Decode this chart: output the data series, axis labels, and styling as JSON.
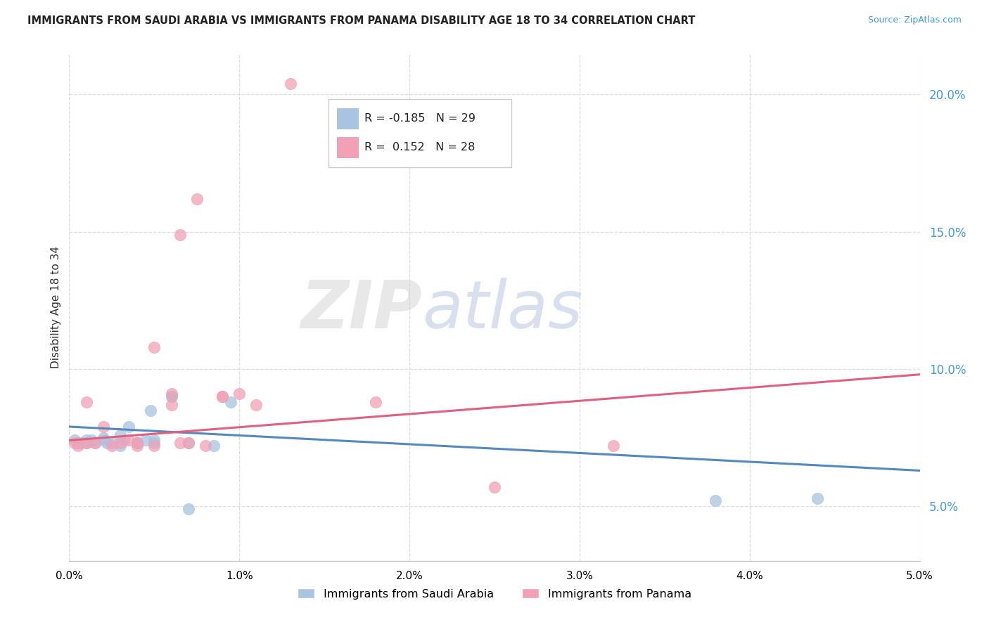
{
  "title": "IMMIGRANTS FROM SAUDI ARABIA VS IMMIGRANTS FROM PANAMA DISABILITY AGE 18 TO 34 CORRELATION CHART",
  "source": "Source: ZipAtlas.com",
  "ylabel": "Disability Age 18 to 34",
  "legend_label_blue": "Immigrants from Saudi Arabia",
  "legend_label_pink": "Immigrants from Panama",
  "legend_r_blue": "R = -0.185",
  "legend_n_blue": "N = 29",
  "legend_r_pink": "R =  0.152",
  "legend_n_pink": "N = 28",
  "xlim": [
    0.0,
    0.05
  ],
  "ylim": [
    0.03,
    0.215
  ],
  "xticks": [
    0.0,
    0.01,
    0.02,
    0.03,
    0.04,
    0.05
  ],
  "yticks_right": [
    0.05,
    0.1,
    0.15,
    0.2
  ],
  "color_blue": "#a8c4e0",
  "color_pink": "#f2a0b5",
  "color_blue_line": "#5588bb",
  "color_pink_line": "#e06080",
  "watermark_zip": "ZIP",
  "watermark_atlas": "atlas",
  "blue_x": [
    0.0003,
    0.0005,
    0.0007,
    0.001,
    0.001,
    0.0013,
    0.0015,
    0.002,
    0.002,
    0.0022,
    0.0025,
    0.003,
    0.003,
    0.0032,
    0.0035,
    0.004,
    0.004,
    0.0045,
    0.0048,
    0.005,
    0.005,
    0.006,
    0.006,
    0.007,
    0.007,
    0.0085,
    0.0095,
    0.038,
    0.044
  ],
  "blue_y": [
    0.074,
    0.073,
    0.073,
    0.074,
    0.073,
    0.074,
    0.073,
    0.075,
    0.074,
    0.073,
    0.073,
    0.076,
    0.072,
    0.074,
    0.079,
    0.073,
    0.073,
    0.074,
    0.085,
    0.074,
    0.073,
    0.09,
    0.09,
    0.073,
    0.049,
    0.072,
    0.088,
    0.052,
    0.053
  ],
  "pink_x": [
    0.0003,
    0.0005,
    0.001,
    0.001,
    0.0015,
    0.002,
    0.0025,
    0.003,
    0.0035,
    0.004,
    0.004,
    0.005,
    0.005,
    0.006,
    0.006,
    0.0065,
    0.0065,
    0.007,
    0.0075,
    0.008,
    0.009,
    0.009,
    0.01,
    0.011,
    0.013,
    0.018,
    0.025,
    0.032
  ],
  "pink_y": [
    0.073,
    0.072,
    0.073,
    0.088,
    0.073,
    0.079,
    0.072,
    0.073,
    0.074,
    0.073,
    0.072,
    0.108,
    0.072,
    0.087,
    0.091,
    0.149,
    0.073,
    0.073,
    0.162,
    0.072,
    0.09,
    0.09,
    0.091,
    0.087,
    0.204,
    0.088,
    0.057,
    0.072
  ],
  "blue_trend_x": [
    0.0,
    0.05
  ],
  "blue_trend_y": [
    0.079,
    0.063
  ],
  "pink_trend_x": [
    0.0,
    0.05
  ],
  "pink_trend_y": [
    0.074,
    0.098
  ]
}
